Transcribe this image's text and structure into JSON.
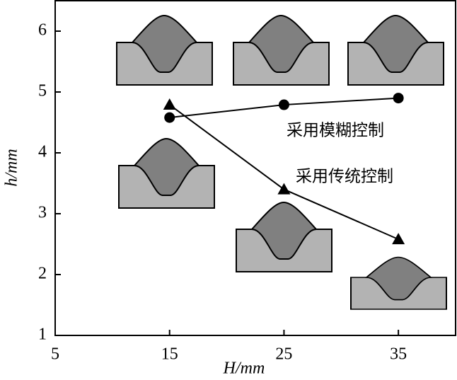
{
  "chart_data": {
    "type": "line",
    "x_label": "H/mm",
    "y_label": "h/mm",
    "x": [
      15,
      25,
      35
    ],
    "series": [
      {
        "name": "采用模糊控制",
        "color": "#000000",
        "marker": "circle",
        "values": [
          4.58,
          4.79,
          4.9
        ]
      },
      {
        "name": "采用传统控制",
        "color": "#000000",
        "marker": "triangle",
        "values": [
          4.79,
          3.4,
          2.58
        ]
      }
    ],
    "xlim": [
      5,
      40
    ],
    "xticks": [
      5,
      15,
      25,
      35
    ],
    "ylim": [
      1,
      6.5
    ],
    "yticks": [
      1,
      2,
      3,
      4,
      5,
      6
    ]
  }
}
